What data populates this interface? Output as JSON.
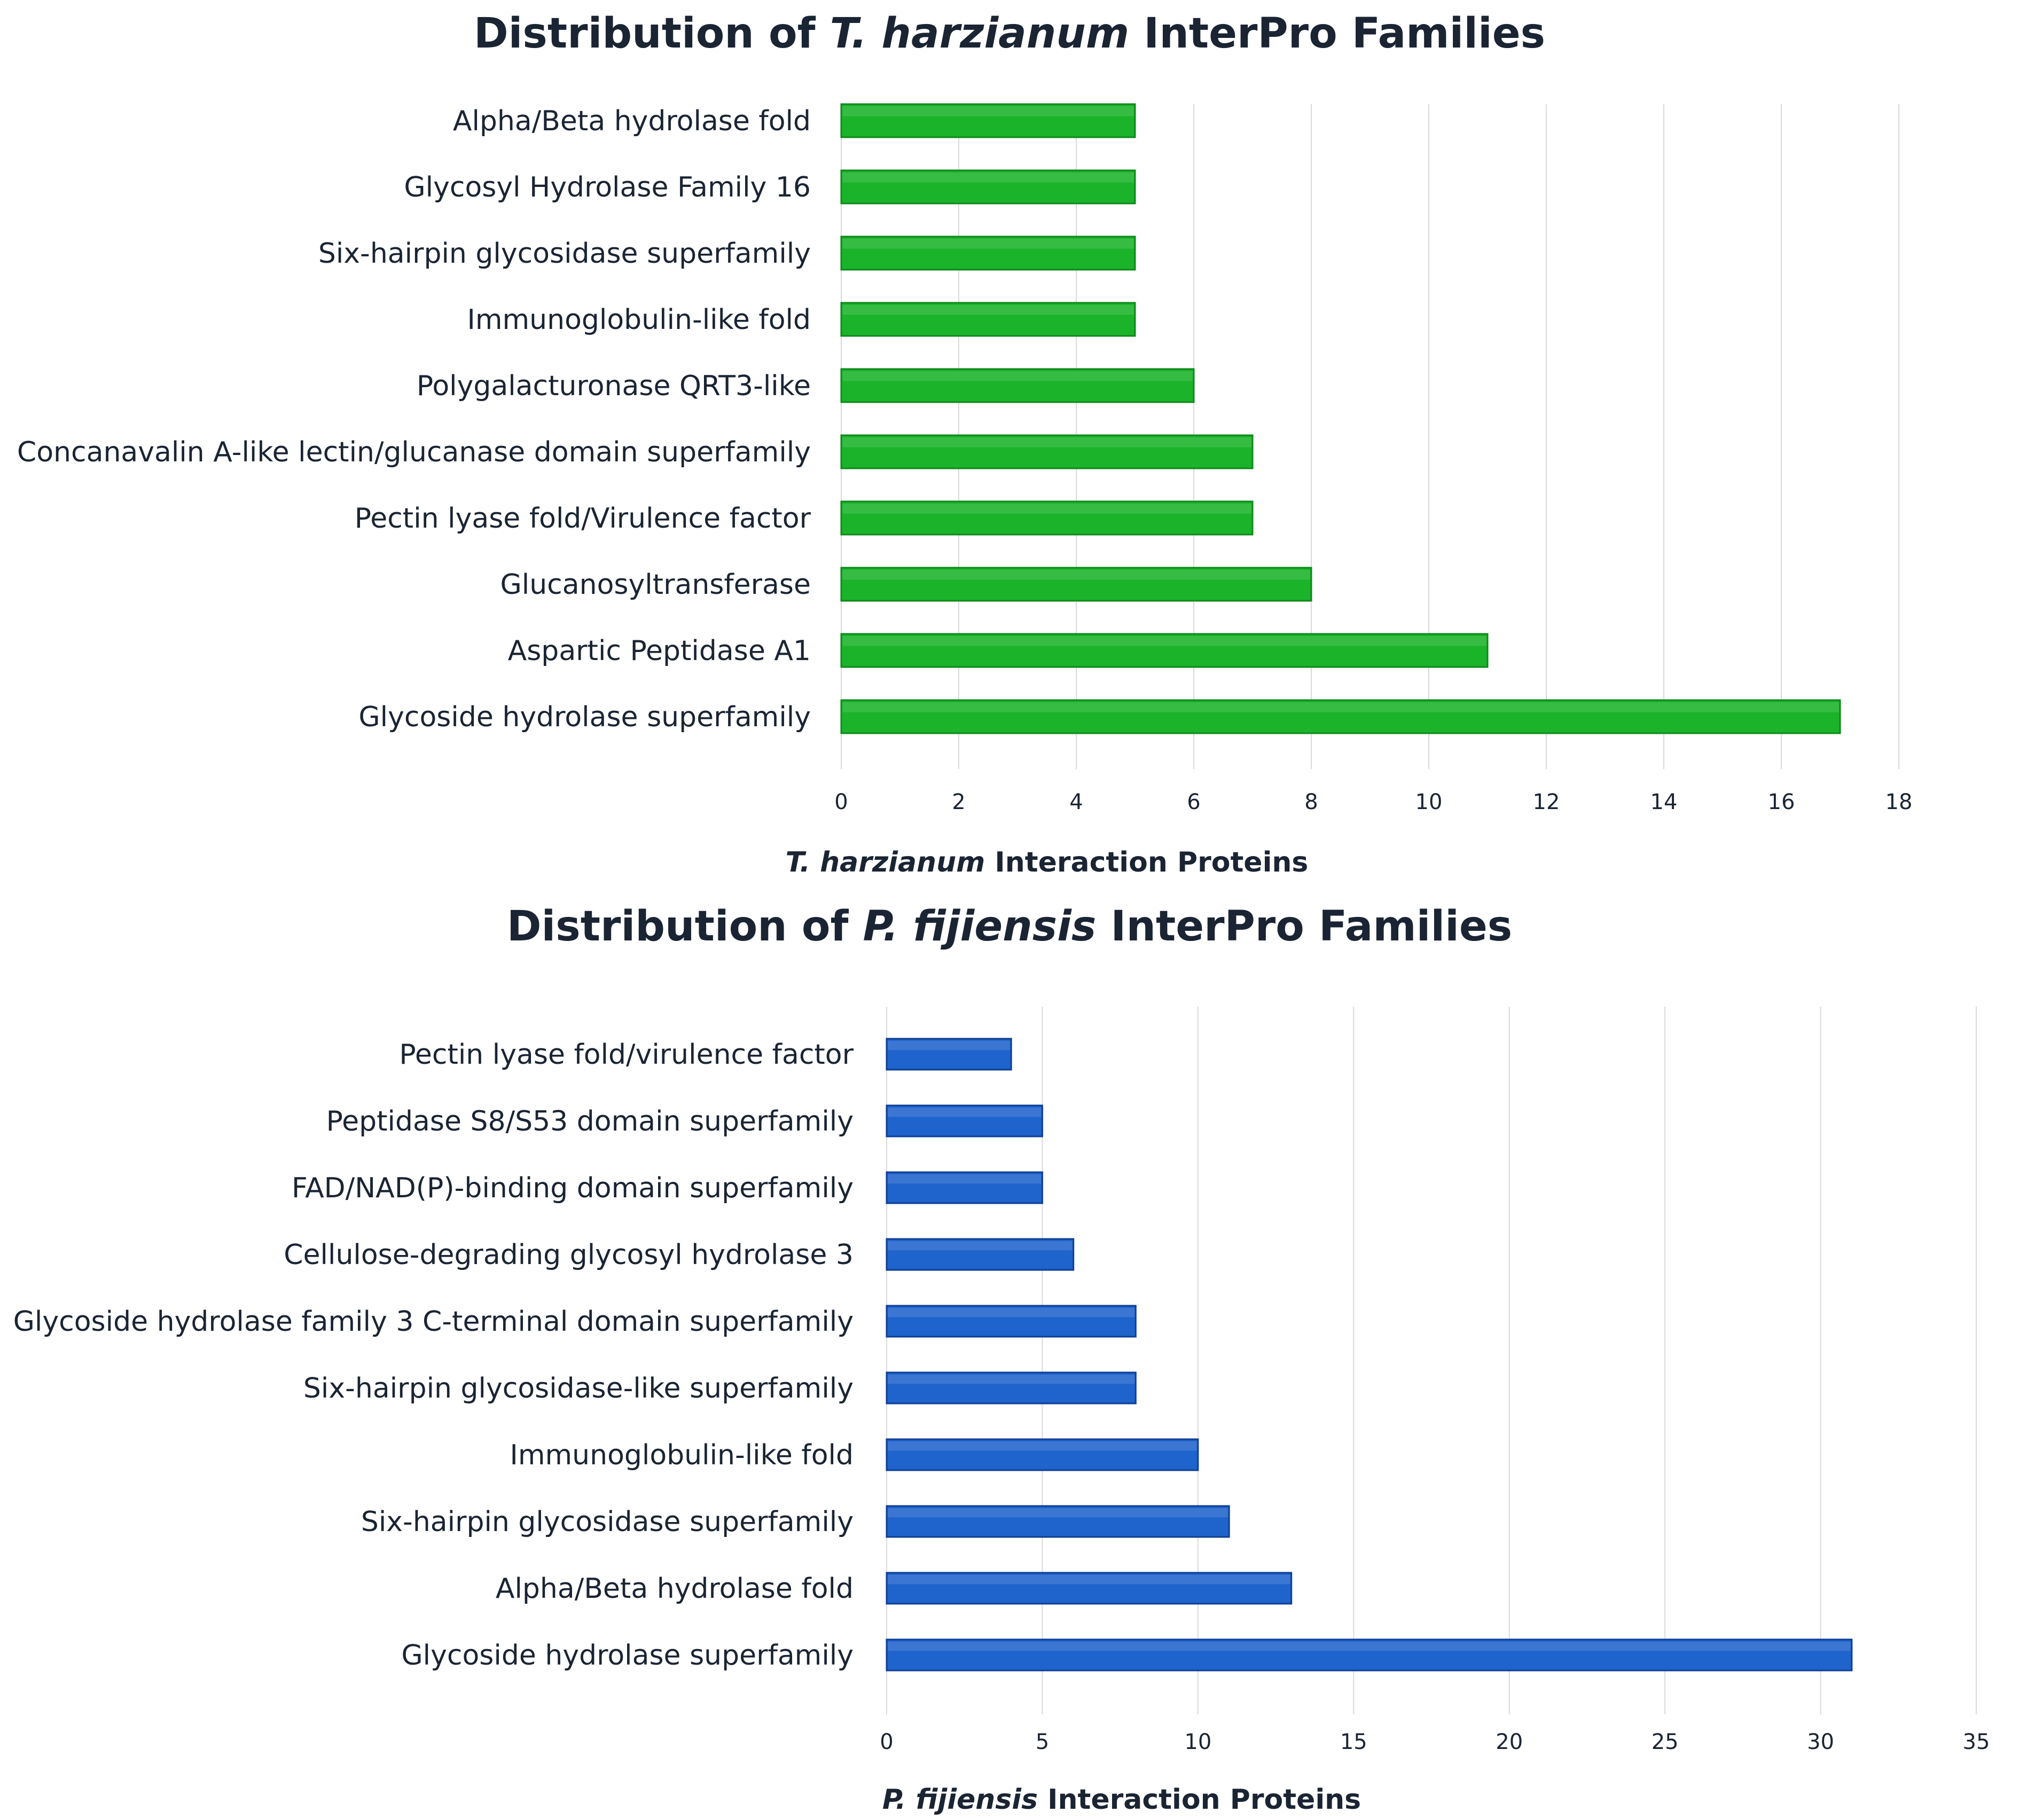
{
  "colors": {
    "green": "#1bb32a",
    "green_dark": "#0e8a1b",
    "blue": "#1f63cc",
    "blue_dark": "#0f3f95",
    "grid": "#d9d9d9",
    "text": "#1a2433"
  },
  "chart_data": [
    {
      "type": "bar",
      "orientation": "horizontal",
      "title_prefix": "Distribution of ",
      "title_species": "T. harzianum",
      "title_suffix": " InterPro Families",
      "xlabel_species": "T. harzianum",
      "xlabel_suffix": " Interaction Proteins",
      "xlim": [
        0,
        18
      ],
      "ticks": [
        0,
        2,
        4,
        6,
        8,
        10,
        12,
        14,
        16,
        18
      ],
      "color": "green",
      "categories": [
        "Alpha/Beta hydrolase fold",
        "Glycosyl Hydrolase Family 16",
        "Six-hairpin glycosidase superfamily",
        "Immunoglobulin-like fold",
        "Polygalacturonase QRT3-like",
        "Concanavalin A-like lectin/glucanase domain superfamily",
        "Pectin lyase fold/Virulence factor",
        "Glucanosyltransferase",
        "Aspartic Peptidase A1",
        "Glycoside hydrolase superfamily"
      ],
      "values": [
        5,
        5,
        5,
        5,
        6,
        7,
        7,
        8,
        11,
        17
      ]
    },
    {
      "type": "bar",
      "orientation": "horizontal",
      "title_prefix": "Distribution of ",
      "title_species": "P. fijiensis",
      "title_suffix": " InterPro Families",
      "xlabel_species": "P. fijiensis",
      "xlabel_suffix": " Interaction Proteins",
      "xlim": [
        0,
        35
      ],
      "ticks": [
        0,
        5,
        10,
        15,
        20,
        25,
        30,
        35
      ],
      "color": "blue",
      "categories": [
        "Pectin lyase fold/virulence factor",
        "Peptidase S8/S53 domain superfamily",
        "FAD/NAD(P)-binding domain superfamily",
        "Cellulose-degrading glycosyl hydrolase 3",
        "Glycoside hydrolase family 3 C-terminal domain superfamily",
        "Six-hairpin glycosidase-like superfamily",
        "Immunoglobulin-like fold",
        "Six-hairpin glycosidase superfamily",
        "Alpha/Beta hydrolase fold",
        "Glycoside hydrolase superfamily"
      ],
      "values": [
        4,
        5,
        5,
        6,
        8,
        8,
        10,
        11,
        13,
        31
      ]
    }
  ]
}
